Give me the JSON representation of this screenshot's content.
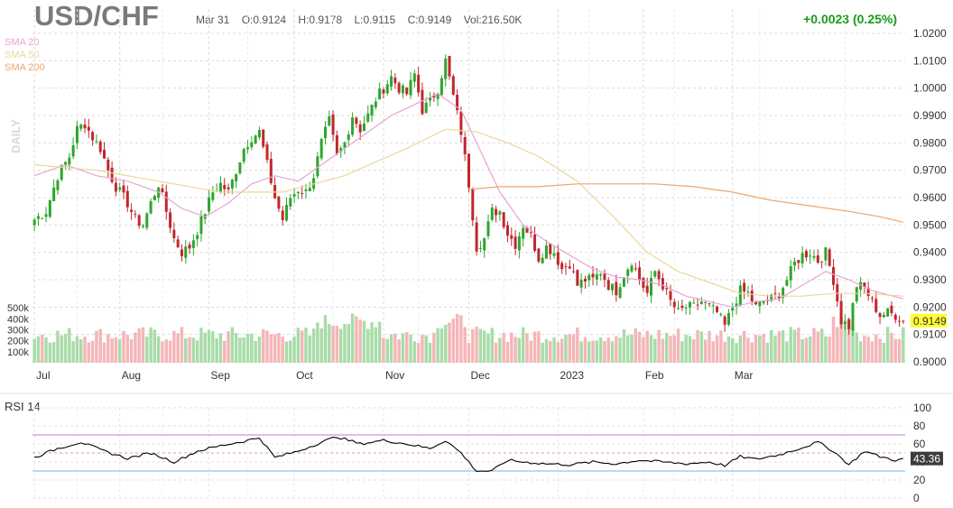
{
  "header": {
    "symbol": "USD/CHF",
    "date": "Mar 31",
    "open": "O:0.9124",
    "high": "H:0.9178",
    "low": "L:0.9115",
    "close": "C:0.9149",
    "volume": "Vol:216.50K",
    "change": "+0.0023 (0.25%)"
  },
  "legend": [
    {
      "label": "SMA 20",
      "color": "#e7a3d6"
    },
    {
      "label": "SMA 50",
      "color": "#ecd79a"
    },
    {
      "label": "SMA 200",
      "color": "#efa56a"
    }
  ],
  "side_label": "DAILY",
  "last_price_label": "0.9149",
  "rsi_title": "RSI 14",
  "rsi_last_label": "43.36",
  "colors": {
    "up": "#2ea52e",
    "down": "#c0272d",
    "vol_up": "#a8dca8",
    "vol_down": "#f4b6b8",
    "rsi_line": "#000000",
    "rsi_upper": "#b77fd0",
    "rsi_lower": "#6fb7e6"
  },
  "chart_data": [
    {
      "type": "candlestick",
      "title": "USD/CHF",
      "x_tick_labels": [
        "Jul",
        "Aug",
        "Sep",
        "Oct",
        "Nov",
        "Dec",
        "2023",
        "Feb",
        "Mar"
      ],
      "y_tick_labels": [
        "1.0200",
        "1.0100",
        "1.0000",
        "0.9900",
        "0.9800",
        "0.9700",
        "0.9600",
        "0.9500",
        "0.9400",
        "0.9300",
        "0.9200",
        "0.9100",
        "0.9000"
      ],
      "ylim": [
        0.9,
        1.02
      ],
      "volume_tick_labels": [
        "500k",
        "400k",
        "300k",
        "200k",
        "100k"
      ],
      "volume_ylim": [
        0,
        550000
      ],
      "price_path": [
        {
          "x": 0,
          "y": 0.952
        },
        {
          "x": 3,
          "y": 0.955
        },
        {
          "x": 6,
          "y": 0.968
        },
        {
          "x": 9,
          "y": 0.975
        },
        {
          "x": 11,
          "y": 0.985
        },
        {
          "x": 13,
          "y": 0.987
        },
        {
          "x": 15,
          "y": 0.982
        },
        {
          "x": 17,
          "y": 0.978
        },
        {
          "x": 19,
          "y": 0.97
        },
        {
          "x": 21,
          "y": 0.964
        },
        {
          "x": 24,
          "y": 0.958
        },
        {
          "x": 26,
          "y": 0.952
        },
        {
          "x": 28,
          "y": 0.95
        },
        {
          "x": 30,
          "y": 0.958
        },
        {
          "x": 32,
          "y": 0.965
        },
        {
          "x": 34,
          "y": 0.955
        },
        {
          "x": 36,
          "y": 0.945
        },
        {
          "x": 38,
          "y": 0.94
        },
        {
          "x": 40,
          "y": 0.942
        },
        {
          "x": 42,
          "y": 0.948
        },
        {
          "x": 44,
          "y": 0.955
        },
        {
          "x": 46,
          "y": 0.962
        },
        {
          "x": 48,
          "y": 0.965
        },
        {
          "x": 50,
          "y": 0.962
        },
        {
          "x": 52,
          "y": 0.97
        },
        {
          "x": 54,
          "y": 0.978
        },
        {
          "x": 56,
          "y": 0.982
        },
        {
          "x": 58,
          "y": 0.984
        },
        {
          "x": 60,
          "y": 0.972
        },
        {
          "x": 62,
          "y": 0.96
        },
        {
          "x": 64,
          "y": 0.952
        },
        {
          "x": 66,
          "y": 0.96
        },
        {
          "x": 68,
          "y": 0.963
        },
        {
          "x": 70,
          "y": 0.962
        },
        {
          "x": 72,
          "y": 0.968
        },
        {
          "x": 74,
          "y": 0.98
        },
        {
          "x": 76,
          "y": 0.988
        },
        {
          "x": 78,
          "y": 0.975
        },
        {
          "x": 80,
          "y": 0.98
        },
        {
          "x": 82,
          "y": 0.99
        },
        {
          "x": 84,
          "y": 0.985
        },
        {
          "x": 86,
          "y": 0.99
        },
        {
          "x": 88,
          "y": 0.996
        },
        {
          "x": 90,
          "y": 1.0
        },
        {
          "x": 92,
          "y": 1.004
        },
        {
          "x": 94,
          "y": 1.0
        },
        {
          "x": 96,
          "y": 0.998
        },
        {
          "x": 98,
          "y": 1.005
        },
        {
          "x": 100,
          "y": 0.992
        },
        {
          "x": 102,
          "y": 0.995
        },
        {
          "x": 104,
          "y": 1.0
        },
        {
          "x": 106,
          "y": 1.01
        },
        {
          "x": 108,
          "y": 0.997
        },
        {
          "x": 110,
          "y": 0.984
        },
        {
          "x": 112,
          "y": 0.965
        },
        {
          "x": 114,
          "y": 0.942
        },
        {
          "x": 116,
          "y": 0.945
        },
        {
          "x": 118,
          "y": 0.955
        },
        {
          "x": 120,
          "y": 0.955
        },
        {
          "x": 122,
          "y": 0.947
        },
        {
          "x": 124,
          "y": 0.943
        },
        {
          "x": 126,
          "y": 0.95
        },
        {
          "x": 128,
          "y": 0.946
        },
        {
          "x": 130,
          "y": 0.938
        },
        {
          "x": 132,
          "y": 0.942
        },
        {
          "x": 134,
          "y": 0.94
        },
        {
          "x": 136,
          "y": 0.934
        },
        {
          "x": 138,
          "y": 0.936
        },
        {
          "x": 140,
          "y": 0.928
        },
        {
          "x": 142,
          "y": 0.93
        },
        {
          "x": 144,
          "y": 0.93
        },
        {
          "x": 146,
          "y": 0.933
        },
        {
          "x": 148,
          "y": 0.928
        },
        {
          "x": 150,
          "y": 0.926
        },
        {
          "x": 152,
          "y": 0.932
        },
        {
          "x": 154,
          "y": 0.937
        },
        {
          "x": 156,
          "y": 0.93
        },
        {
          "x": 158,
          "y": 0.925
        },
        {
          "x": 160,
          "y": 0.933
        },
        {
          "x": 162,
          "y": 0.928
        },
        {
          "x": 164,
          "y": 0.922
        },
        {
          "x": 166,
          "y": 0.918
        },
        {
          "x": 168,
          "y": 0.92
        },
        {
          "x": 170,
          "y": 0.92
        },
        {
          "x": 172,
          "y": 0.922
        },
        {
          "x": 174,
          "y": 0.92
        },
        {
          "x": 176,
          "y": 0.918
        },
        {
          "x": 178,
          "y": 0.913
        },
        {
          "x": 180,
          "y": 0.92
        },
        {
          "x": 182,
          "y": 0.926
        },
        {
          "x": 184,
          "y": 0.925
        },
        {
          "x": 186,
          "y": 0.92
        },
        {
          "x": 188,
          "y": 0.922
        },
        {
          "x": 190,
          "y": 0.923
        },
        {
          "x": 192,
          "y": 0.925
        },
        {
          "x": 194,
          "y": 0.93
        },
        {
          "x": 196,
          "y": 0.936
        },
        {
          "x": 198,
          "y": 0.939
        },
        {
          "x": 200,
          "y": 0.94
        },
        {
          "x": 202,
          "y": 0.937
        },
        {
          "x": 204,
          "y": 0.94
        },
        {
          "x": 206,
          "y": 0.93
        },
        {
          "x": 208,
          "y": 0.915
        },
        {
          "x": 210,
          "y": 0.913
        },
        {
          "x": 212,
          "y": 0.928
        },
        {
          "x": 214,
          "y": 0.927
        },
        {
          "x": 216,
          "y": 0.922
        },
        {
          "x": 218,
          "y": 0.917
        },
        {
          "x": 220,
          "y": 0.918
        },
        {
          "x": 222,
          "y": 0.917
        },
        {
          "x": 224,
          "y": 0.915
        }
      ],
      "series": [
        {
          "name": "SMA 20",
          "points": [
            {
              "x": 0,
              "y": 0.968
            },
            {
              "x": 8,
              "y": 0.972
            },
            {
              "x": 16,
              "y": 0.968
            },
            {
              "x": 24,
              "y": 0.966
            },
            {
              "x": 32,
              "y": 0.962
            },
            {
              "x": 38,
              "y": 0.956
            },
            {
              "x": 44,
              "y": 0.953
            },
            {
              "x": 50,
              "y": 0.958
            },
            {
              "x": 56,
              "y": 0.965
            },
            {
              "x": 62,
              "y": 0.968
            },
            {
              "x": 68,
              "y": 0.966
            },
            {
              "x": 74,
              "y": 0.972
            },
            {
              "x": 80,
              "y": 0.978
            },
            {
              "x": 86,
              "y": 0.984
            },
            {
              "x": 92,
              "y": 0.99
            },
            {
              "x": 98,
              "y": 0.994
            },
            {
              "x": 104,
              "y": 0.998
            },
            {
              "x": 110,
              "y": 0.992
            },
            {
              "x": 114,
              "y": 0.98
            },
            {
              "x": 120,
              "y": 0.962
            },
            {
              "x": 126,
              "y": 0.95
            },
            {
              "x": 132,
              "y": 0.944
            },
            {
              "x": 138,
              "y": 0.939
            },
            {
              "x": 144,
              "y": 0.934
            },
            {
              "x": 150,
              "y": 0.931
            },
            {
              "x": 156,
              "y": 0.93
            },
            {
              "x": 162,
              "y": 0.928
            },
            {
              "x": 168,
              "y": 0.924
            },
            {
              "x": 174,
              "y": 0.922
            },
            {
              "x": 180,
              "y": 0.92
            },
            {
              "x": 186,
              "y": 0.922
            },
            {
              "x": 192,
              "y": 0.923
            },
            {
              "x": 198,
              "y": 0.928
            },
            {
              "x": 204,
              "y": 0.933
            },
            {
              "x": 210,
              "y": 0.93
            },
            {
              "x": 216,
              "y": 0.926
            },
            {
              "x": 224,
              "y": 0.923
            }
          ]
        },
        {
          "name": "SMA 50",
          "points": [
            {
              "x": 0,
              "y": 0.972
            },
            {
              "x": 16,
              "y": 0.97
            },
            {
              "x": 32,
              "y": 0.966
            },
            {
              "x": 48,
              "y": 0.962
            },
            {
              "x": 64,
              "y": 0.962
            },
            {
              "x": 80,
              "y": 0.968
            },
            {
              "x": 96,
              "y": 0.978
            },
            {
              "x": 106,
              "y": 0.985
            },
            {
              "x": 114,
              "y": 0.984
            },
            {
              "x": 122,
              "y": 0.98
            },
            {
              "x": 130,
              "y": 0.975
            },
            {
              "x": 140,
              "y": 0.966
            },
            {
              "x": 150,
              "y": 0.952
            },
            {
              "x": 158,
              "y": 0.94
            },
            {
              "x": 166,
              "y": 0.933
            },
            {
              "x": 174,
              "y": 0.929
            },
            {
              "x": 182,
              "y": 0.925
            },
            {
              "x": 190,
              "y": 0.924
            },
            {
              "x": 198,
              "y": 0.924
            },
            {
              "x": 206,
              "y": 0.925
            },
            {
              "x": 214,
              "y": 0.925
            },
            {
              "x": 224,
              "y": 0.924
            }
          ]
        },
        {
          "name": "SMA 200",
          "points": [
            {
              "x": 112,
              "y": 0.963
            },
            {
              "x": 120,
              "y": 0.964
            },
            {
              "x": 130,
              "y": 0.964
            },
            {
              "x": 140,
              "y": 0.965
            },
            {
              "x": 150,
              "y": 0.965
            },
            {
              "x": 160,
              "y": 0.965
            },
            {
              "x": 170,
              "y": 0.964
            },
            {
              "x": 180,
              "y": 0.962
            },
            {
              "x": 190,
              "y": 0.959
            },
            {
              "x": 200,
              "y": 0.957
            },
            {
              "x": 210,
              "y": 0.955
            },
            {
              "x": 218,
              "y": 0.953
            },
            {
              "x": 224,
              "y": 0.951
            }
          ]
        }
      ]
    },
    {
      "type": "line",
      "title": "RSI 14",
      "y_tick_labels": [
        "100",
        "80",
        "60",
        "40",
        "20",
        "0"
      ],
      "ylim": [
        0,
        100
      ],
      "upper_band": 70,
      "lower_band": 30,
      "series": [
        {
          "points": [
            {
              "x": 0,
              "y": 45
            },
            {
              "x": 6,
              "y": 55
            },
            {
              "x": 12,
              "y": 62
            },
            {
              "x": 18,
              "y": 52
            },
            {
              "x": 24,
              "y": 44
            },
            {
              "x": 30,
              "y": 50
            },
            {
              "x": 36,
              "y": 40
            },
            {
              "x": 42,
              "y": 52
            },
            {
              "x": 48,
              "y": 58
            },
            {
              "x": 54,
              "y": 63
            },
            {
              "x": 58,
              "y": 67
            },
            {
              "x": 62,
              "y": 45
            },
            {
              "x": 68,
              "y": 52
            },
            {
              "x": 74,
              "y": 62
            },
            {
              "x": 78,
              "y": 68
            },
            {
              "x": 84,
              "y": 60
            },
            {
              "x": 90,
              "y": 64
            },
            {
              "x": 96,
              "y": 60
            },
            {
              "x": 102,
              "y": 55
            },
            {
              "x": 106,
              "y": 64
            },
            {
              "x": 110,
              "y": 50
            },
            {
              "x": 114,
              "y": 30
            },
            {
              "x": 118,
              "y": 30
            },
            {
              "x": 122,
              "y": 42
            },
            {
              "x": 126,
              "y": 40
            },
            {
              "x": 132,
              "y": 38
            },
            {
              "x": 138,
              "y": 37
            },
            {
              "x": 144,
              "y": 40
            },
            {
              "x": 150,
              "y": 38
            },
            {
              "x": 156,
              "y": 42
            },
            {
              "x": 162,
              "y": 40
            },
            {
              "x": 168,
              "y": 38
            },
            {
              "x": 174,
              "y": 40
            },
            {
              "x": 178,
              "y": 36
            },
            {
              "x": 182,
              "y": 46
            },
            {
              "x": 186,
              "y": 43
            },
            {
              "x": 192,
              "y": 48
            },
            {
              "x": 198,
              "y": 56
            },
            {
              "x": 202,
              "y": 62
            },
            {
              "x": 206,
              "y": 52
            },
            {
              "x": 210,
              "y": 37
            },
            {
              "x": 214,
              "y": 52
            },
            {
              "x": 218,
              "y": 46
            },
            {
              "x": 222,
              "y": 42
            },
            {
              "x": 224,
              "y": 43
            }
          ]
        }
      ]
    }
  ]
}
